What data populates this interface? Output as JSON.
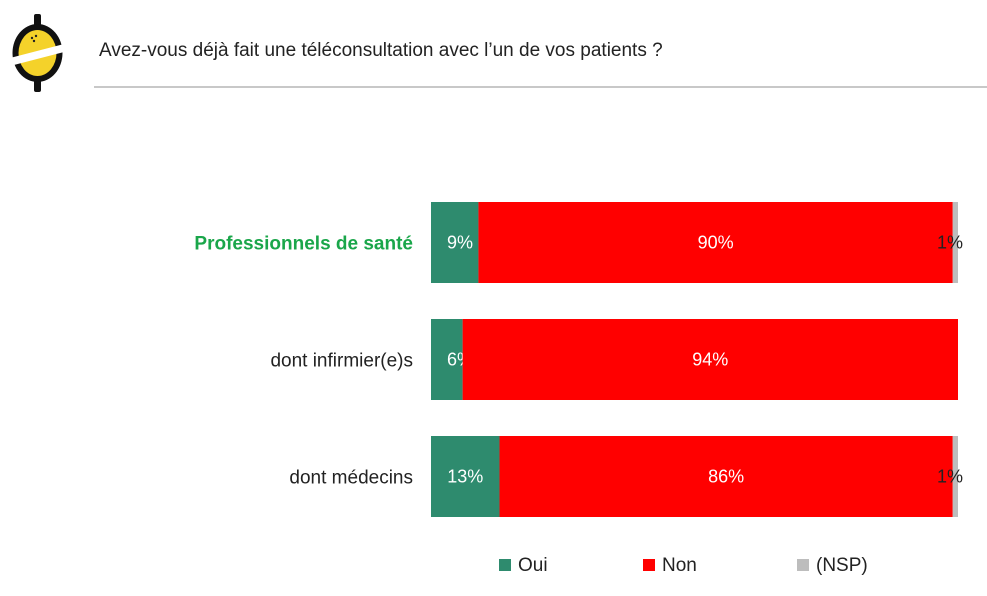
{
  "header": {
    "title": "Avez-vous déjà fait une téléconsultation avec l’un de vos patients ?"
  },
  "colors": {
    "oui": "#2e8b6e",
    "non": "#ff0000",
    "nsp": "#bdbdbd",
    "highlight_label": "#1aa64a"
  },
  "chart_data": {
    "type": "bar",
    "orientation": "horizontal",
    "stacked": true,
    "percent": true,
    "title": "Avez-vous déjà fait une téléconsultation avec l’un de vos patients ?",
    "categories": [
      "Professionnels de santé",
      "dont infirmier(e)s",
      "dont médecins"
    ],
    "category_highlight": [
      true,
      false,
      false
    ],
    "series": [
      {
        "name": "Oui",
        "values": [
          9,
          6,
          13
        ],
        "labels": [
          "9%",
          "6%",
          "13%"
        ]
      },
      {
        "name": "Non",
        "values": [
          90,
          94,
          86
        ],
        "labels": [
          "90%",
          "94%",
          "86%"
        ]
      },
      {
        "name": "(NSP)",
        "values": [
          1,
          0,
          1
        ],
        "labels": [
          "1%",
          "",
          "1%"
        ]
      }
    ],
    "legend_position": "bottom",
    "grid": false
  }
}
